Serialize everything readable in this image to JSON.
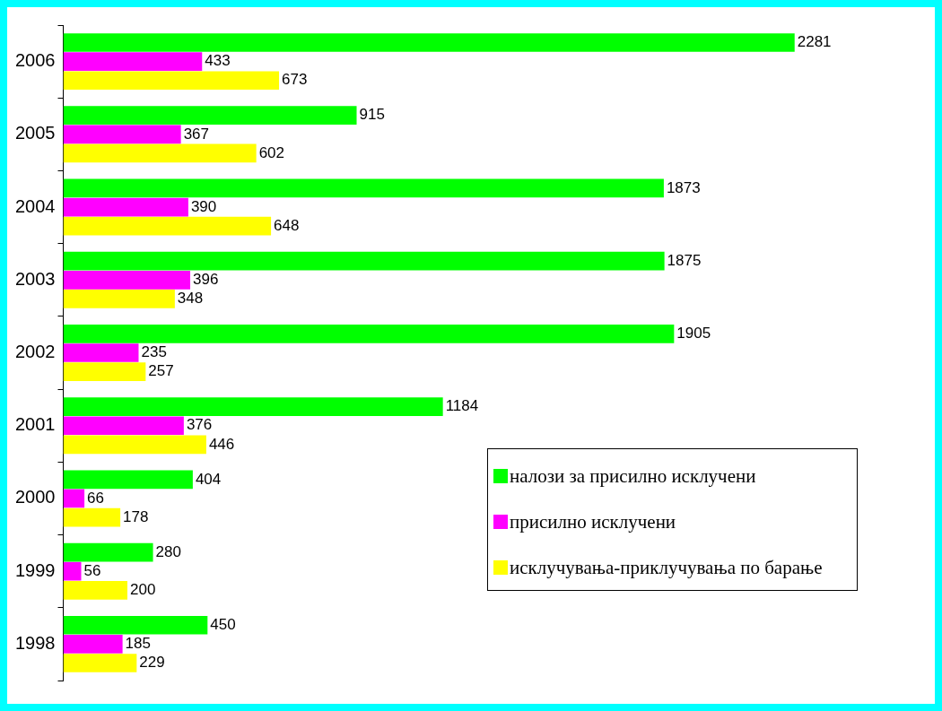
{
  "chart_data": {
    "type": "bar",
    "orientation": "horizontal",
    "categories": [
      "2006",
      "2005",
      "2004",
      "2003",
      "2002",
      "2001",
      "2000",
      "1999",
      "1998"
    ],
    "series": [
      {
        "name": "налози за присилно исклучени",
        "color": "#00ff00",
        "values": [
          2281,
          915,
          1873,
          1875,
          1905,
          1184,
          404,
          280,
          450
        ]
      },
      {
        "name": "присилно исклучени",
        "color": "#ff00ff",
        "values": [
          433,
          367,
          390,
          396,
          235,
          376,
          66,
          56,
          185
        ]
      },
      {
        "name": "исклучувања-приклучувања по барање",
        "color": "#ffff00",
        "values": [
          673,
          602,
          648,
          348,
          257,
          446,
          178,
          200,
          229
        ]
      }
    ],
    "data_labels": true,
    "legend": "bottom right",
    "tick_labels": "y",
    "grid": false
  }
}
